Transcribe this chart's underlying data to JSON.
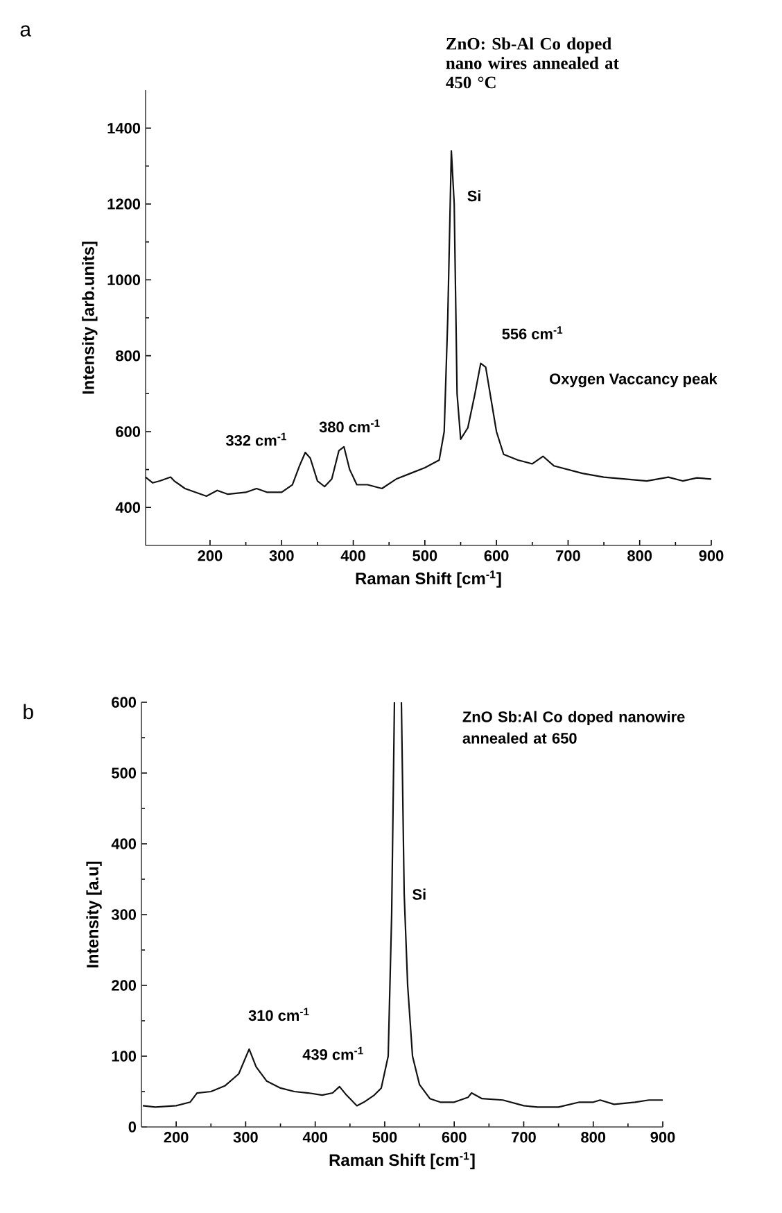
{
  "chart_data": [
    {
      "type": "line",
      "title": "a",
      "xlabel": "Raman Shift [cm$^{-1}$]",
      "ylabel": "Intensity [arb.units]",
      "xlim": [
        110,
        900
      ],
      "ylim": [
        300,
        1500
      ],
      "xticks": [
        200,
        300,
        400,
        500,
        600,
        700,
        800,
        900
      ],
      "yticks": [
        400,
        600,
        800,
        1000,
        1200,
        1400
      ],
      "color": "#111111",
      "marker": "none",
      "x": [
        110,
        120,
        130,
        145,
        150,
        165,
        180,
        195,
        210,
        225,
        250,
        265,
        280,
        300,
        315,
        325,
        333,
        340,
        350,
        360,
        370,
        380,
        387,
        395,
        405,
        420,
        440,
        460,
        480,
        500,
        520,
        527,
        532,
        537,
        541,
        545,
        550,
        560,
        570,
        578,
        585,
        592,
        600,
        610,
        630,
        650,
        665,
        680,
        700,
        720,
        750,
        780,
        810,
        840,
        860,
        880,
        900
      ],
      "values": [
        480,
        465,
        470,
        480,
        470,
        450,
        440,
        430,
        445,
        435,
        440,
        450,
        440,
        440,
        460,
        510,
        545,
        530,
        470,
        455,
        475,
        550,
        560,
        500,
        460,
        460,
        450,
        475,
        490,
        505,
        525,
        600,
        900,
        1340,
        1200,
        700,
        580,
        610,
        700,
        780,
        770,
        690,
        600,
        540,
        525,
        515,
        535,
        510,
        500,
        490,
        480,
        475,
        470,
        480,
        470,
        478,
        475
      ],
      "annotations": [
        "ZnO: Sb-Al Co doped nano wires annealed at 450 °C",
        "Si",
        "332 cm$^{-1}$",
        "380 cm$^{-1}$",
        "556 cm$^{-1}$",
        "Oxygen Vaccancy peak"
      ]
    },
    {
      "type": "line",
      "title": "b",
      "xlabel": "Raman Shift [cm$^{-1}$]",
      "ylabel": "Intensity [a.u]",
      "xlim": [
        150,
        900
      ],
      "ylim": [
        0,
        600
      ],
      "xticks": [
        200,
        300,
        400,
        500,
        600,
        700,
        800,
        900
      ],
      "yticks": [
        0,
        100,
        200,
        300,
        400,
        500,
        600
      ],
      "color": "#111111",
      "marker": "none",
      "x": [
        152,
        170,
        200,
        220,
        230,
        250,
        270,
        290,
        305,
        315,
        330,
        350,
        370,
        390,
        410,
        425,
        435,
        445,
        460,
        470,
        485,
        495,
        505,
        510,
        514,
        519,
        524,
        528,
        533,
        540,
        550,
        565,
        580,
        600,
        620,
        625,
        640,
        670,
        700,
        720,
        750,
        780,
        800,
        810,
        830,
        860,
        880,
        900
      ],
      "values": [
        30,
        28,
        30,
        35,
        48,
        50,
        58,
        75,
        110,
        85,
        65,
        55,
        50,
        48,
        45,
        48,
        57,
        45,
        30,
        35,
        45,
        55,
        100,
        300,
        600,
        null,
        600,
        330,
        200,
        100,
        60,
        40,
        35,
        35,
        42,
        48,
        40,
        38,
        30,
        28,
        28,
        35,
        35,
        38,
        32,
        35,
        38,
        38
      ],
      "annotations": [
        "ZnO Sb:Al Co doped nanowire annealed at 650",
        "Si",
        "310 cm$^{-1}$",
        "439 cm$^{-1}$"
      ]
    }
  ]
}
